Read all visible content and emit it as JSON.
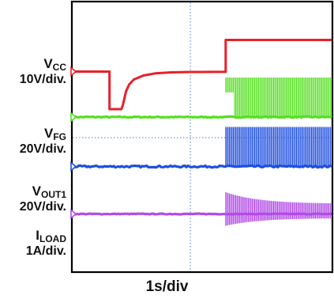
{
  "chart_data": {
    "type": "line",
    "title": "",
    "xlabel": "1s/div",
    "ylabel": "",
    "grid": true,
    "x_unit": "s",
    "xlim": [
      0,
      3.3
    ],
    "divisions_y": 8,
    "series": [
      {
        "key": "vcc",
        "name": "VCC",
        "name_main": "V",
        "name_sub": "CC",
        "scale": "10V/div.",
        "unit": "V",
        "color": "#e8202a",
        "ground_div": 3.5,
        "marker_color": "#e8202a",
        "noise": 0.0,
        "points": [
          [
            0,
            0
          ],
          [
            0.47,
            0
          ],
          [
            0.47,
            -19
          ],
          [
            0.62,
            -19
          ],
          [
            0.64,
            -17
          ],
          [
            0.68,
            -10
          ],
          [
            0.72,
            -6.5
          ],
          [
            0.78,
            -4
          ],
          [
            0.9,
            -2
          ],
          [
            1.05,
            -0.9
          ],
          [
            1.25,
            -0.4
          ],
          [
            1.5,
            -0.2
          ],
          [
            1.95,
            -0.1
          ],
          [
            1.95,
            16
          ],
          [
            3.3,
            16
          ]
        ]
      },
      {
        "key": "vfg",
        "name": "VFG",
        "name_main": "V",
        "name_sub": "FG",
        "scale": "20V/div.",
        "unit": "V",
        "color": "#55e020",
        "ground_div": 5.8,
        "marker_color": "#55e020",
        "noise": 0.6,
        "points": [
          [
            0,
            0
          ],
          [
            1.95,
            0
          ],
          [
            3.3,
            0
          ]
        ],
        "burst": {
          "start": 1.95,
          "end": 3.3,
          "high": 40,
          "low": 0,
          "high_early": 40,
          "low_early": 25,
          "early_end": 2.06
        }
      },
      {
        "key": "vout1",
        "name": "VOUT1",
        "name_main": "V",
        "name_sub": "OUT1",
        "scale": "20V/div.",
        "unit": "V",
        "color": "#1f4fe0",
        "ground_div": 8.3,
        "marker_color": "#1f4fe0",
        "noise": 0.9,
        "points": [
          [
            0,
            0
          ],
          [
            1.95,
            0
          ],
          [
            3.3,
            0
          ]
        ],
        "burst": {
          "start": 1.95,
          "end": 3.3,
          "high": 40,
          "low": 0,
          "high_early": 40,
          "low_early": 0,
          "early_end": 1.95
        }
      },
      {
        "key": "iload",
        "name": "ILOAD",
        "name_main": "I",
        "name_sub": "LOAD",
        "scale": "1A/div.",
        "unit": "A",
        "color": "#b34ae8",
        "ground_div": 10.7,
        "marker_color": "#b34ae8",
        "noise": 0.02,
        "points": [
          [
            0,
            0
          ],
          [
            1.95,
            0
          ],
          [
            3.3,
            0
          ]
        ],
        "burst": {
          "start": 1.95,
          "end": 3.3,
          "high": 0.9,
          "low": -0.6,
          "decay": true
        }
      }
    ]
  }
}
